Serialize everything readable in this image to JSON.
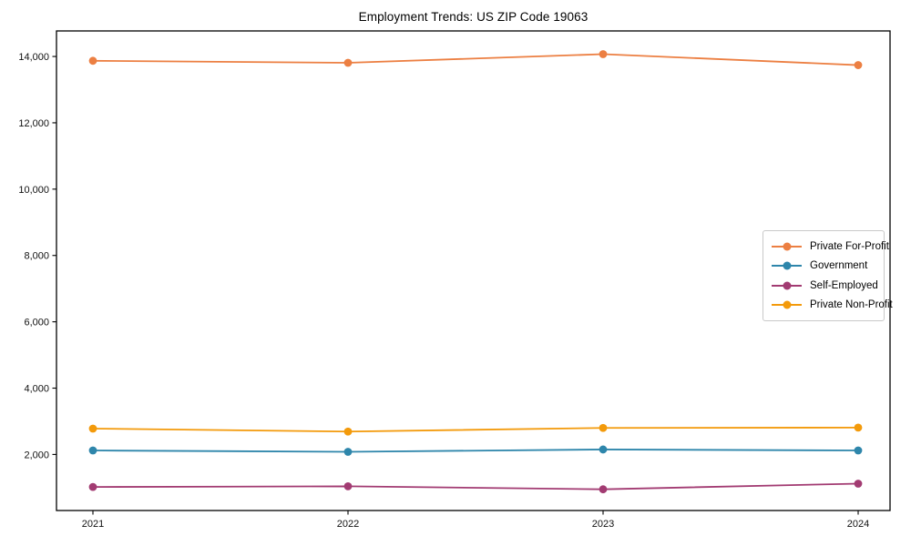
{
  "title": "Employment Trends: US ZIP Code 19063",
  "chart_data": {
    "type": "line",
    "title": "Employment Trends: US ZIP Code 19063",
    "xlabel": "",
    "ylabel": "",
    "categories": [
      "2021",
      "2022",
      "2023",
      "2024"
    ],
    "series": [
      {
        "name": "Private For-Profit",
        "color": "#ec7f42",
        "values": [
          13870,
          13810,
          14070,
          13740
        ]
      },
      {
        "name": "Government",
        "color": "#2e86ab",
        "values": [
          2120,
          2080,
          2150,
          2120
        ]
      },
      {
        "name": "Self-Employed",
        "color": "#a23b72",
        "values": [
          1020,
          1040,
          950,
          1120
        ]
      },
      {
        "name": "Private Non-Profit",
        "color": "#f39a0b",
        "values": [
          2780,
          2690,
          2800,
          2810
        ]
      }
    ],
    "yticks": [
      2000,
      4000,
      6000,
      8000,
      10000,
      12000,
      14000
    ],
    "ylim": [
      310,
      14770
    ],
    "grid": false,
    "marker": "circle",
    "legend_position": "center right"
  }
}
